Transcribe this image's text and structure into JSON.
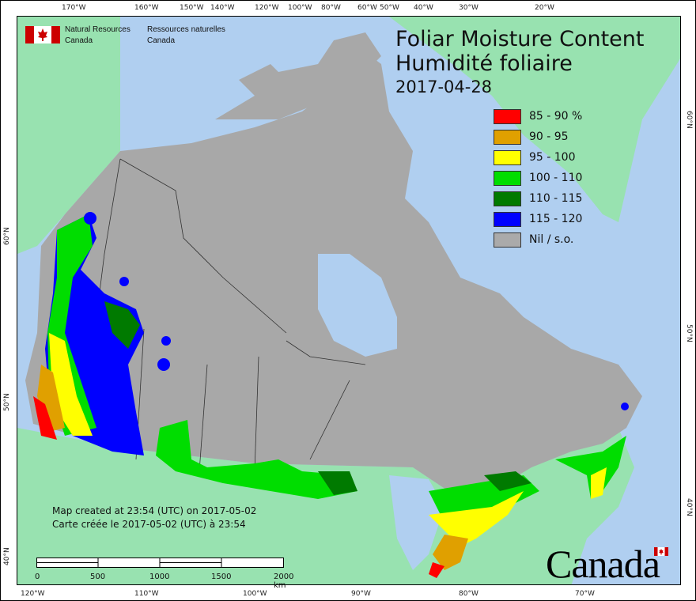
{
  "header": {
    "nrcan_en": [
      "Natural Resources",
      "Canada"
    ],
    "nrcan_fr": [
      "Ressources naturelles",
      "Canada"
    ]
  },
  "title": {
    "en": "Foliar Moisture Content",
    "fr": "Humidité foliaire",
    "date": "2017-04-28"
  },
  "legend": [
    {
      "label": "85 - 90 %",
      "color": "#ff0000"
    },
    {
      "label": "90 - 95",
      "color": "#e0a000"
    },
    {
      "label": "95 - 100",
      "color": "#ffff00"
    },
    {
      "label": "100 - 110",
      "color": "#00dd00"
    },
    {
      "label": "110 - 115",
      "color": "#007a00"
    },
    {
      "label": "115 - 120",
      "color": "#0000ff"
    },
    {
      "label": "Nil / s.o.",
      "color": "#aaaaaa"
    }
  ],
  "created": {
    "en": "Map created at 23:54 (UTC) on 2017-05-02",
    "fr": "Carte créée le 2017-05-02 (UTC) à 23:54"
  },
  "scale": {
    "labels": [
      "0",
      "500",
      "1000",
      "1500",
      "2000  km"
    ]
  },
  "wordmark": "Canada",
  "ticks": {
    "top": [
      "170°W",
      "160°W",
      "150°W",
      "140°W",
      "120°W",
      "100°W",
      "80°W",
      "60°W",
      "50°W",
      "40°W",
      "30°W",
      "20°W"
    ],
    "bottom": [
      "120°W",
      "110°W",
      "100°W",
      "90°W",
      "80°W",
      "70°W"
    ],
    "left": [
      "60°N",
      "50°N",
      "40°N"
    ],
    "right": [
      "60°N",
      "50°N",
      "40°N"
    ]
  },
  "colors": {
    "water": "#b0cff0",
    "land_other": "#98e2b0",
    "canada_nil": "#a8a8a8"
  }
}
